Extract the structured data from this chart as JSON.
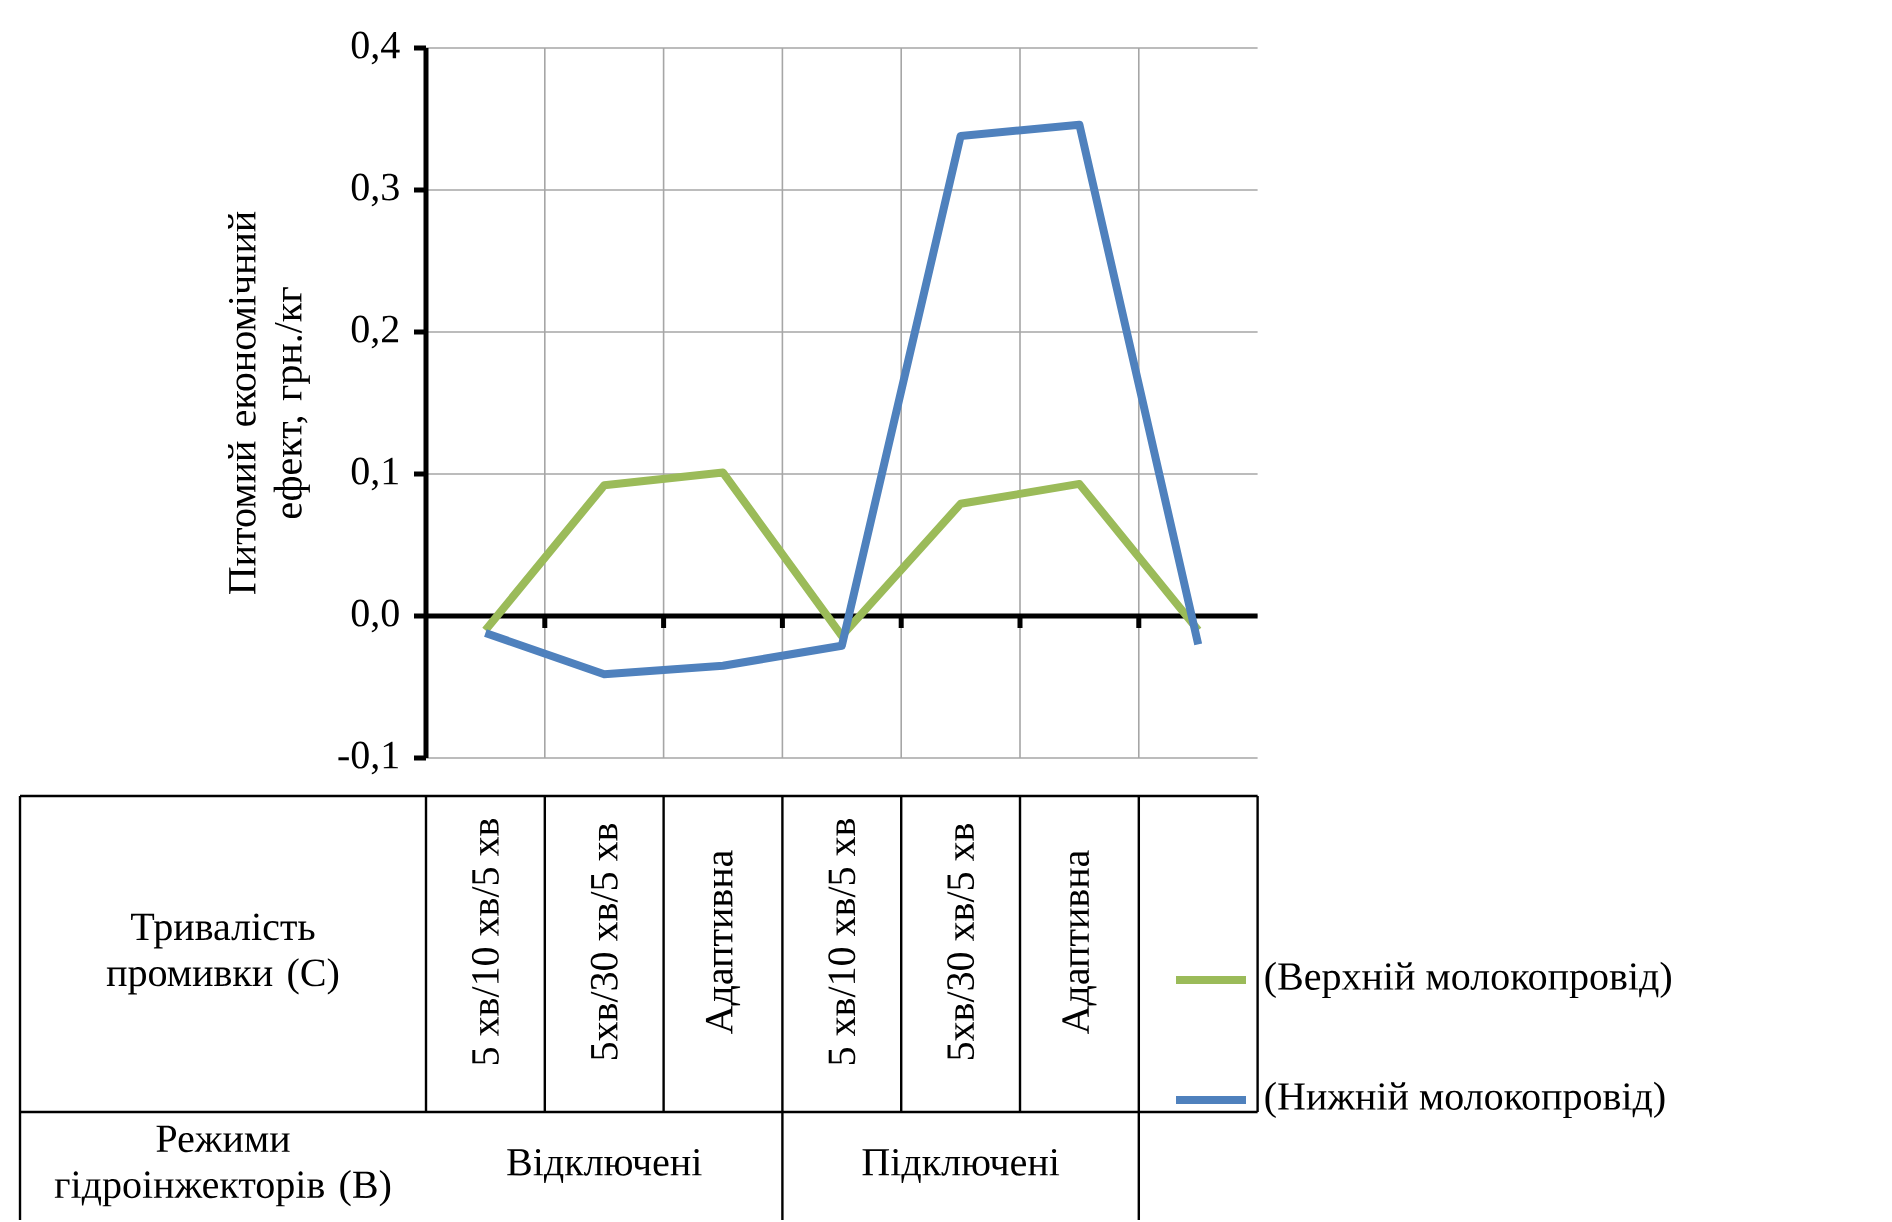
{
  "chart_data": {
    "type": "line",
    "ylabel": "Питомий економічний ефект, грн./кг",
    "xlabel": "Тривалість промивки (С)",
    "categories": [
      "5 хв/10 хв/5 хв",
      "5хв/30 хв/5 хв",
      "Адаптивна",
      "5 хв/10 хв/5 хв",
      "5хв/30 хв/5 хв",
      "Адаптивна",
      null
    ],
    "series": [
      {
        "name": "(Верхній молокопровід)",
        "color": "#9bbb59",
        "values": [
          -0.01,
          0.092,
          0.101,
          -0.014,
          0.079,
          0.093,
          -0.01
        ]
      },
      {
        "name": "(Нижній молокопровід)",
        "color": "#4f81bd",
        "values": [
          -0.012,
          -0.041,
          -0.035,
          -0.021,
          0.338,
          0.346,
          -0.02
        ]
      }
    ],
    "ylim": [
      -0.1,
      0.4
    ],
    "yticks": [
      {
        "value": -0.1,
        "label": "-0,1"
      },
      {
        "value": 0,
        "label": "0,0"
      },
      {
        "value": 0.1,
        "label": "0,1"
      },
      {
        "value": 0.2,
        "label": "0,2"
      },
      {
        "value": 0.3,
        "label": "0,3"
      },
      {
        "value": 0.4,
        "label": "0,4"
      }
    ],
    "grid": true,
    "legend": "bottom right",
    "annotations": [
      "Режими гідроінжекторів (В)",
      "Відключені",
      "Підключені"
    ]
  }
}
